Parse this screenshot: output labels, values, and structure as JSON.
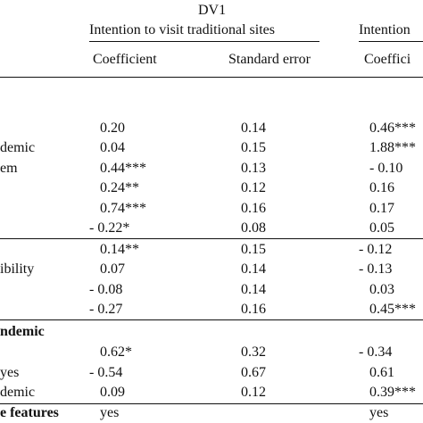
{
  "header": {
    "dv": "DV1",
    "dv1_title": "Intention to visit traditional sites",
    "dv2_title": "Intention",
    "columns": [
      "Coefficient",
      "Standard error",
      "Coeffici"
    ]
  },
  "section1": {
    "labels": [
      "",
      "demic",
      "em",
      "",
      "",
      ""
    ],
    "rows": [
      [
        "0.20",
        "0.14",
        "0.46***"
      ],
      [
        "0.04",
        "0.15",
        "1.88***"
      ],
      [
        "0.44***",
        "0.13",
        "- 0.10"
      ],
      [
        "0.24**",
        "0.12",
        "0.16"
      ],
      [
        "0.74***",
        "0.16",
        "0.17"
      ],
      [
        "- 0.22*",
        "0.08",
        "0.05"
      ]
    ]
  },
  "section2": {
    "labels": [
      "",
      "ibility",
      "",
      ""
    ],
    "rows": [
      [
        "0.14**",
        "0.15",
        "- 0.12"
      ],
      [
        "0.07",
        "0.14",
        "- 0.13"
      ],
      [
        "- 0.08",
        "0.14",
        "0.03"
      ],
      [
        "- 0.27",
        "0.16",
        "0.45***"
      ]
    ]
  },
  "section3": {
    "heading": "ndemic",
    "labels": [
      "",
      "yes",
      "demic",
      "e features"
    ],
    "rows": [
      [
        "0.62*",
        "0.32",
        "- 0.34"
      ],
      [
        "- 0.54",
        "0.67",
        "0.61"
      ],
      [
        "0.09",
        "0.12",
        "0.39***"
      ],
      [
        "yes",
        "",
        "yes"
      ]
    ]
  }
}
